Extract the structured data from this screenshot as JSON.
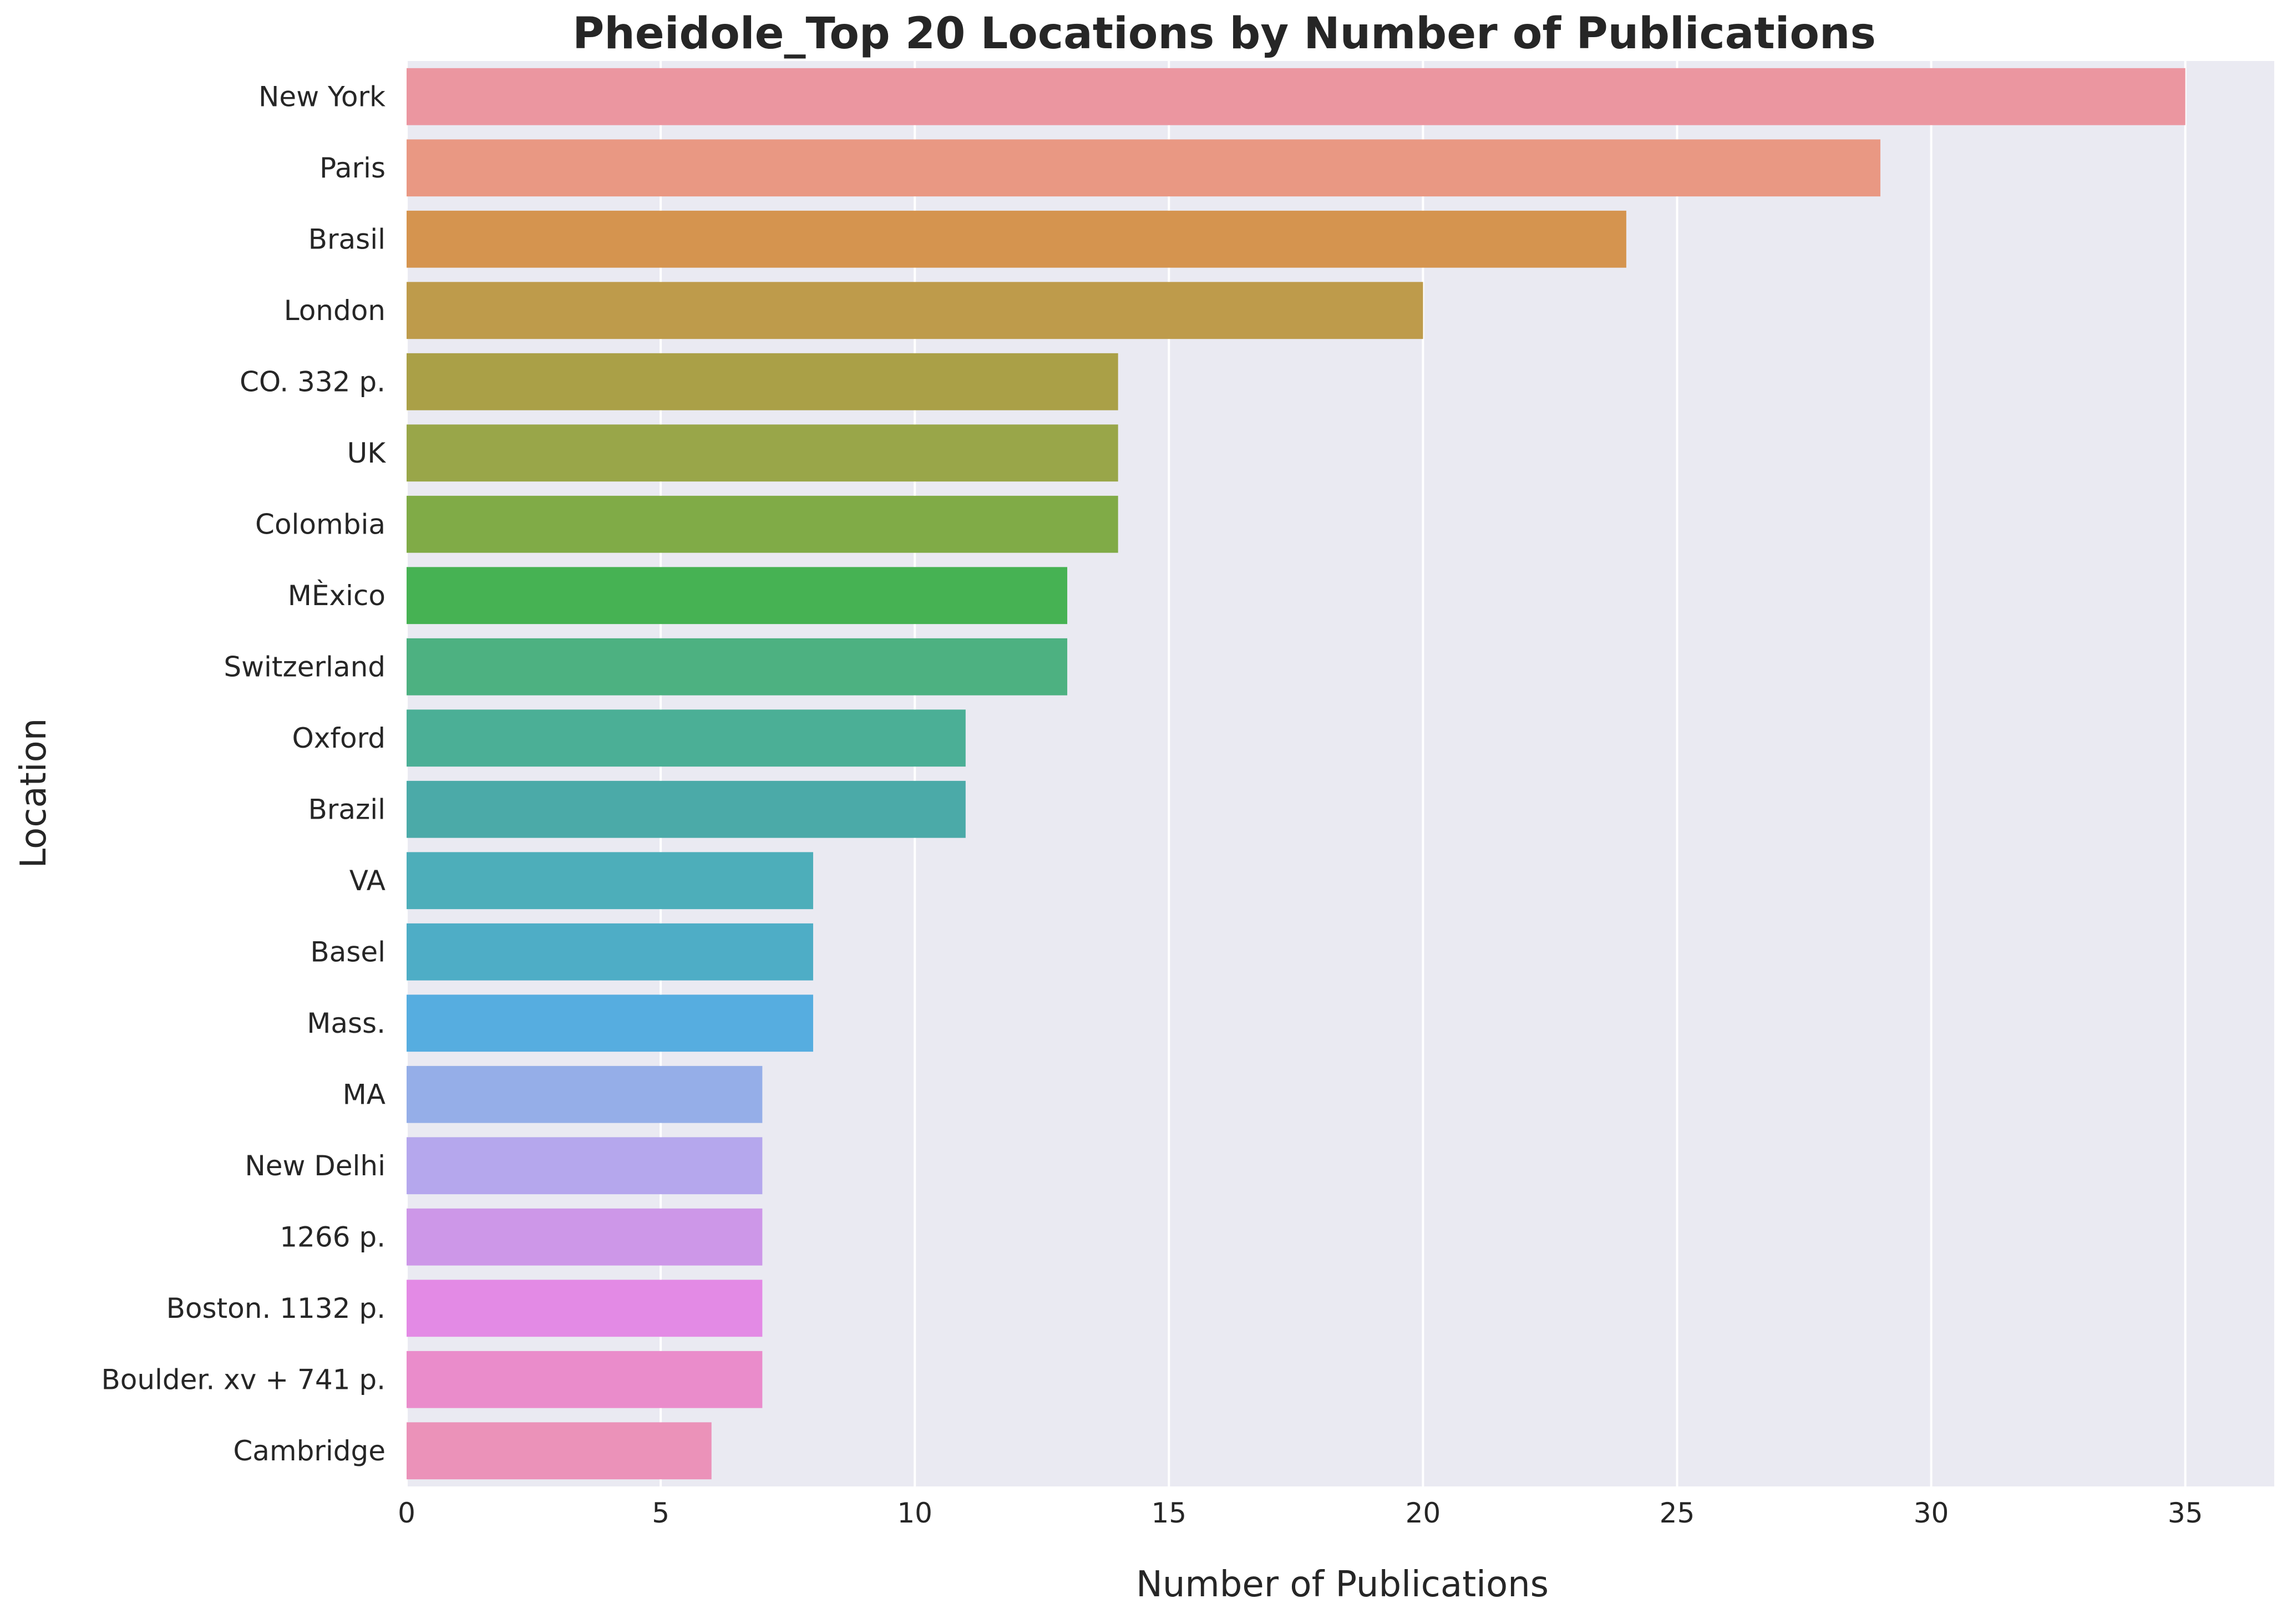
{
  "chart_data": {
    "type": "bar",
    "orientation": "horizontal",
    "title": "Pheidole_Top 20 Locations by Number of Publications",
    "xlabel": "Number of Publications",
    "ylabel": "Location",
    "xlim": [
      0,
      36.75
    ],
    "xticks": [
      0,
      5,
      10,
      15,
      20,
      25,
      30,
      35
    ],
    "grid": true,
    "background": "#eaeaf2",
    "categories": [
      "New York",
      "Paris",
      "Brasil",
      "London",
      "CO. 332 p.",
      "UK",
      "Colombia",
      "MÈxico",
      "Switzerland",
      "Oxford",
      "Brazil",
      "VA",
      "Basel",
      "Mass.",
      "MA",
      "New Delhi",
      "1266 p.",
      "Boston.  1132 p.",
      "Boulder.  xv + 741 p.",
      "Cambridge"
    ],
    "values": [
      35,
      29,
      24,
      20,
      14,
      14,
      14,
      13,
      13,
      11,
      11,
      8,
      8,
      8,
      7,
      7,
      7,
      7,
      7,
      6
    ],
    "colors": [
      "#eb96a0",
      "#e99883",
      "#d5944f",
      "#be9b4b",
      "#aaa047",
      "#99a649",
      "#80ab47",
      "#46b253",
      "#4db181",
      "#4baf96",
      "#4baaa8",
      "#4daeba",
      "#4eadc6",
      "#56ade0",
      "#95aee8",
      "#b5a7ed",
      "#cd97e8",
      "#e38ae5",
      "#ea8ccb",
      "#eb92b9"
    ]
  }
}
